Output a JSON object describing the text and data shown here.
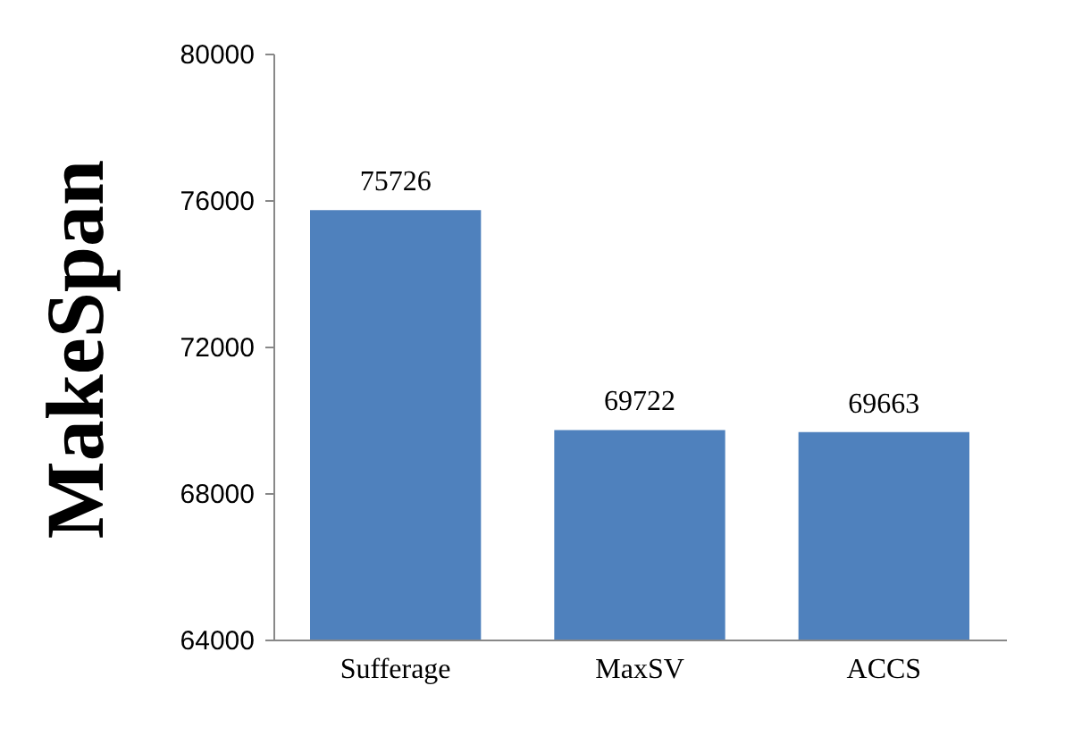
{
  "chart_data": {
    "type": "bar",
    "ylabel": "MakeSpan",
    "categories": [
      "Sufferage",
      "MaxSV",
      "ACCS"
    ],
    "values": [
      75726,
      69722,
      69663
    ],
    "color": "#4f81bd",
    "ylim": [
      64000,
      80000
    ],
    "yticks": [
      64000,
      68000,
      72000,
      76000,
      80000
    ],
    "grid": false,
    "data_labels": true
  }
}
